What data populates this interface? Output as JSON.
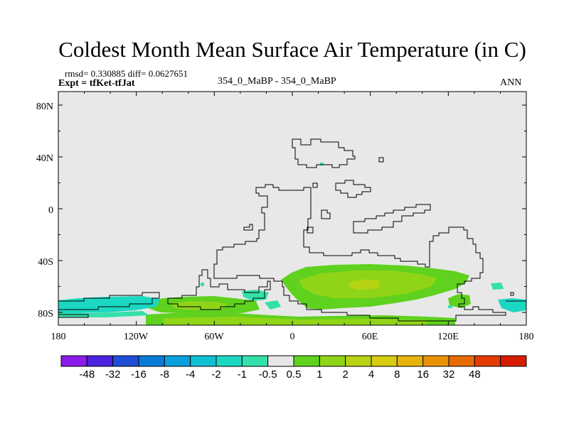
{
  "title": "Coldest Month Mean Surface Air Temperature (in C)",
  "stats": "rmsd= 0.330885 diff= 0.0627651",
  "experiment": "Expt = tfKet-tfJat",
  "center_label": "354_0_MaBP - 354_0_MaBP",
  "right_label": "ANN",
  "map": {
    "background_color": "#e8e8e8",
    "lat_ticks": [
      "80N",
      "40N",
      "0",
      "40S",
      "80S"
    ],
    "lon_ticks": [
      "180",
      "120W",
      "60W",
      "0",
      "60E",
      "120E",
      "180"
    ]
  },
  "colorbar": {
    "colors": [
      "#8a1be8",
      "#4a22e0",
      "#1f4fd8",
      "#0a7ad8",
      "#0aa0dc",
      "#12c0d4",
      "#1cd7c2",
      "#34e0aa",
      "#e6e6e6",
      "#5fd11e",
      "#90d418",
      "#b8d214",
      "#d6cc10",
      "#e6b40c",
      "#e89208",
      "#e86a06",
      "#e43c04",
      "#d81c02"
    ],
    "labels": [
      "-48",
      "-32",
      "-16",
      "-8",
      "-4",
      "-2",
      "-1",
      "-0.5",
      "0.5",
      "1",
      "2",
      "4",
      "8",
      "16",
      "32",
      "48"
    ]
  }
}
